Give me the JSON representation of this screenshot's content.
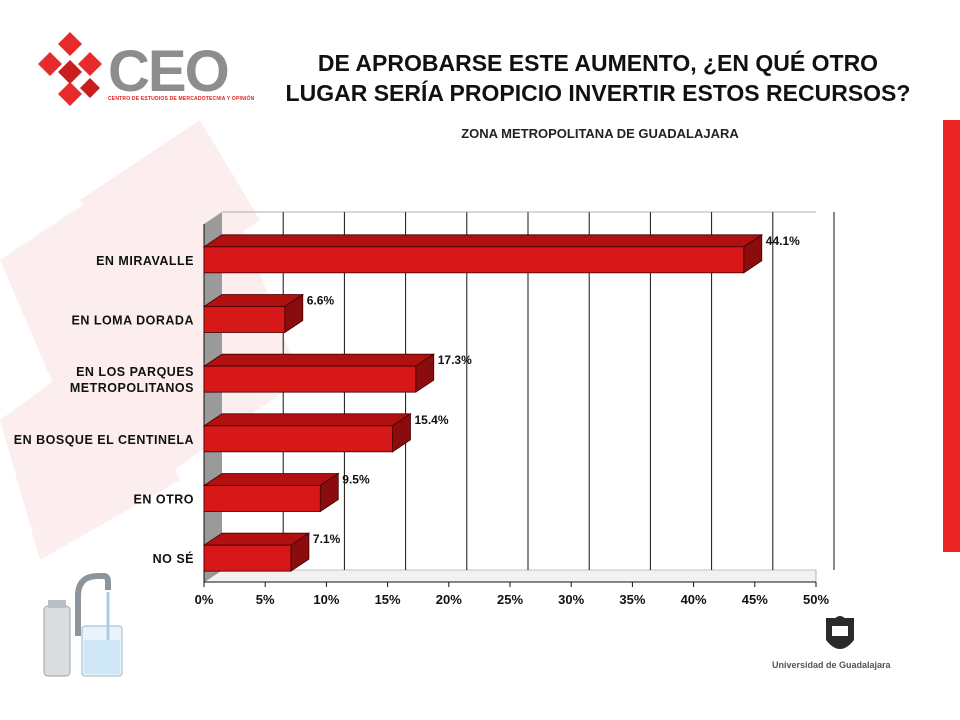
{
  "header": {
    "title_line1": "DE APROBARSE ESTE AUMENTO, ¿EN QUÉ OTRO",
    "title_line2": "LUGAR SERÍA PROPICIO INVERTIR ESTOS RECURSOS?",
    "subtitle": "ZONA METROPOLITANA DE GUADALAJARA"
  },
  "logo": {
    "text": "CEO",
    "subtitle": "CENTRO DE ESTUDIOS DE MERCADOTECNIA Y OPINIÓN"
  },
  "footer": {
    "university": "Universidad de Guadalajara"
  },
  "colors": {
    "bar_front": "#d61818",
    "bar_top": "#b01010",
    "bar_side": "#8a0c0c",
    "wall": "#9a9a9a",
    "accent": "#ec2424"
  },
  "chart_data": {
    "type": "bar",
    "orientation": "horizontal",
    "categories": [
      "EN MIRAVALLE",
      "EN LOMA DORADA",
      "EN LOS PARQUES METROPOLITANOS",
      "EN BOSQUE EL CENTINELA",
      "EN OTRO",
      "NO SÉ"
    ],
    "values": [
      44.1,
      6.6,
      17.3,
      15.4,
      9.5,
      7.1
    ],
    "value_labels": [
      "44.1%",
      "6.6%",
      "17.3%",
      "15.4%",
      "9.5%",
      "7.1%"
    ],
    "xlim": [
      0,
      50
    ],
    "xticks": [
      0,
      5,
      10,
      15,
      20,
      25,
      30,
      35,
      40,
      45,
      50
    ],
    "xtick_labels": [
      "0%",
      "5%",
      "10%",
      "15%",
      "20%",
      "25%",
      "30%",
      "35%",
      "40%",
      "45%",
      "50%"
    ],
    "grid": true
  }
}
